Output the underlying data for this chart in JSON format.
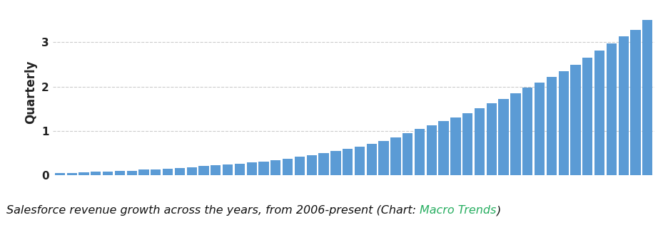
{
  "values": [
    0.05,
    0.06,
    0.07,
    0.08,
    0.09,
    0.1,
    0.11,
    0.13,
    0.14,
    0.15,
    0.17,
    0.19,
    0.21,
    0.23,
    0.25,
    0.27,
    0.29,
    0.32,
    0.35,
    0.38,
    0.42,
    0.46,
    0.5,
    0.55,
    0.6,
    0.65,
    0.71,
    0.78,
    0.86,
    0.95,
    1.05,
    1.13,
    1.22,
    1.3,
    1.4,
    1.52,
    1.63,
    1.73,
    1.85,
    1.98,
    2.1,
    2.22,
    2.35,
    2.5,
    2.65,
    2.82,
    2.98,
    3.13,
    3.28,
    3.5
  ],
  "bar_color": "#5B9BD5",
  "ylabel": "Quarterly",
  "ylabel_fontsize": 12,
  "ylabel_fontweight": "bold",
  "yticks": [
    0,
    1,
    2,
    3
  ],
  "ylim": [
    0,
    3.75
  ],
  "background_color": "#ffffff",
  "grid_color": "#cccccc",
  "caption_black": "Salesforce revenue growth across the years, from 2006-present (Chart: ",
  "caption_green": "Macro Trends",
  "caption_end": ")",
  "green_color": "#27AE60",
  "caption_fontsize": 11.5
}
